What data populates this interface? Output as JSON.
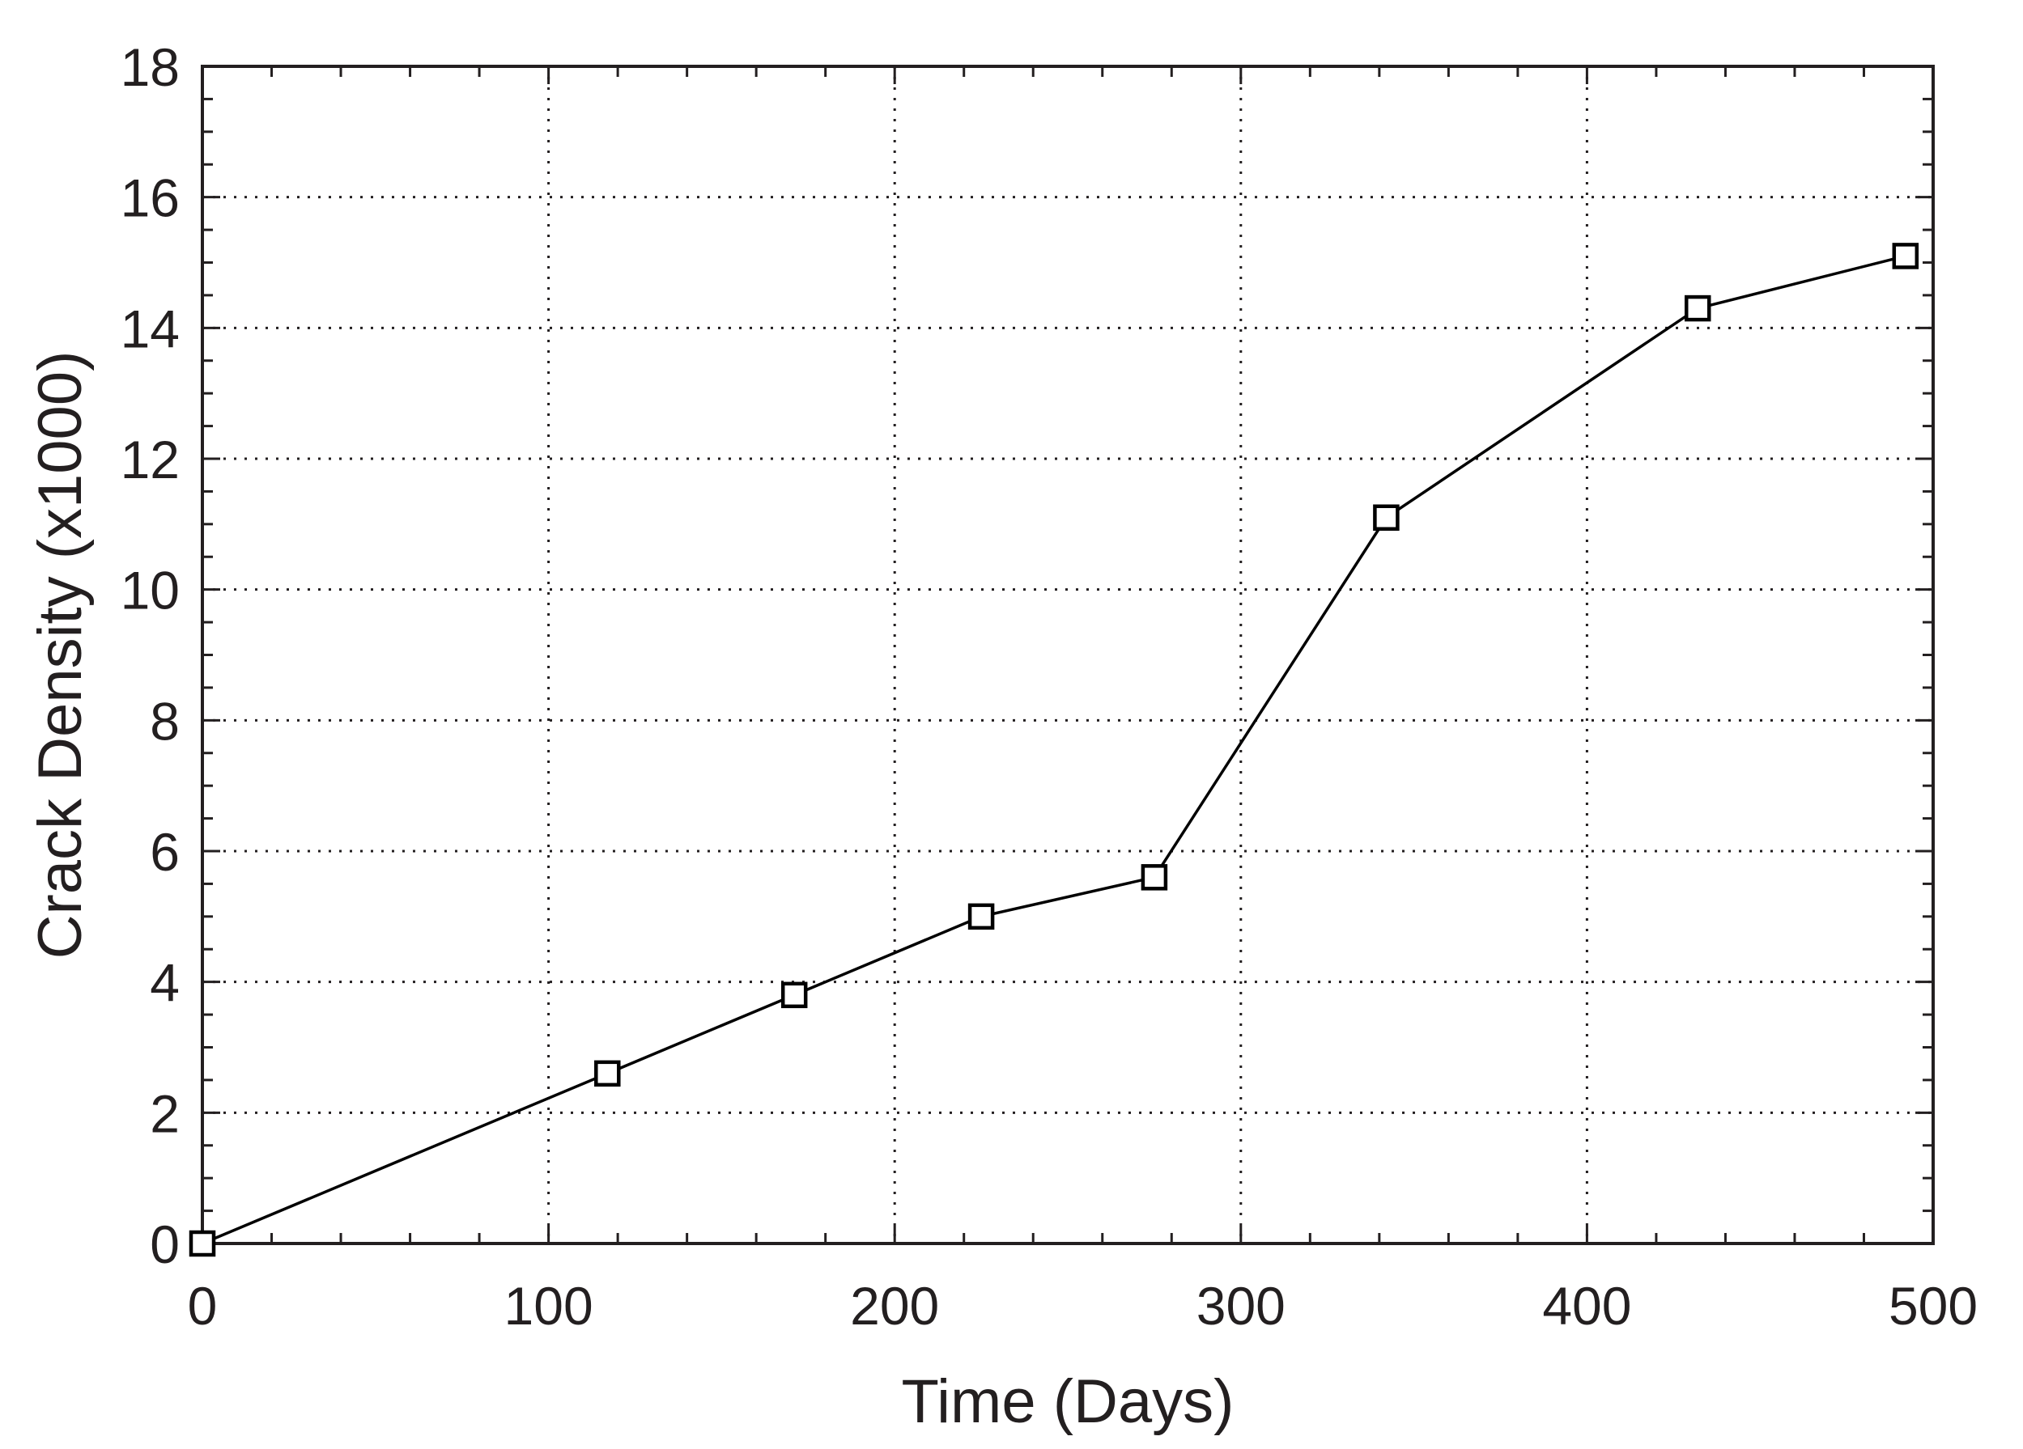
{
  "chart_data": {
    "type": "line",
    "title": "",
    "xlabel": "Time (Days)",
    "ylabel": "Crack Density (x1000)",
    "xlim": [
      0,
      500
    ],
    "ylim": [
      0,
      18
    ],
    "xticks": [
      0,
      100,
      200,
      300,
      400,
      500
    ],
    "xtick_labels": [
      "0",
      "100",
      "200",
      "300",
      "400",
      "500"
    ],
    "yticks": [
      0,
      2,
      4,
      6,
      8,
      10,
      12,
      14,
      16,
      18
    ],
    "ytick_labels": [
      "0",
      "2",
      "4",
      "6",
      "8",
      "10",
      "12",
      "14",
      "16",
      "18"
    ],
    "grid": true,
    "grid_style": "dotted",
    "legend": "none",
    "series": [
      {
        "marker": "open-square",
        "color": "#000000",
        "x": [
          0,
          117,
          171,
          225,
          275,
          342,
          432,
          492
        ],
        "y": [
          0,
          2.6,
          3.8,
          5.0,
          5.6,
          11.1,
          14.3,
          15.1
        ]
      }
    ]
  }
}
